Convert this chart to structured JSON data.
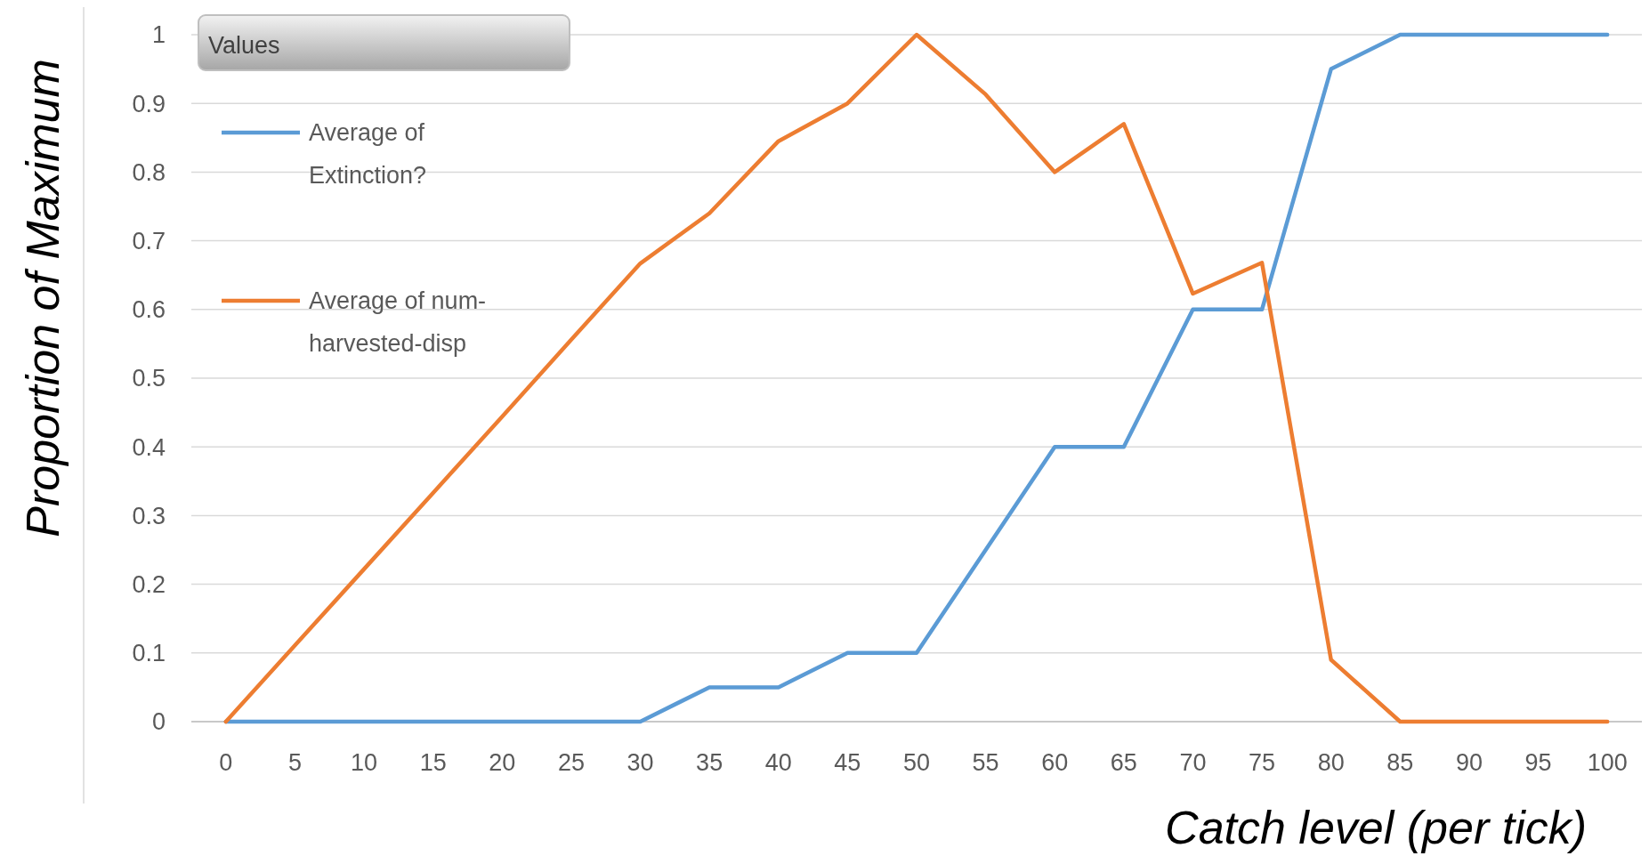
{
  "chart_data": {
    "type": "line",
    "xlabel": "Catch level (per tick)",
    "ylabel": "Proportion of Maximum",
    "legend_title": "Values",
    "categories": [
      "0",
      "5",
      "10",
      "15",
      "20",
      "25",
      "30",
      "35",
      "40",
      "45",
      "50",
      "55",
      "60",
      "65",
      "70",
      "75",
      "80",
      "85",
      "90",
      "95",
      "100"
    ],
    "series": [
      {
        "name": "Average of Extinction?",
        "color": "#5b9bd5",
        "values": [
          0,
          0,
          0,
          0,
          0,
          0,
          0,
          0.05,
          0.05,
          0.1,
          0.1,
          0.25,
          0.4,
          0.4,
          0.6,
          0.6,
          0.95,
          1,
          1,
          1,
          1
        ]
      },
      {
        "name": "Average of num-harvested-disp",
        "color": "#ed7d31",
        "values": [
          0,
          0.111,
          0.222,
          0.333,
          0.444,
          0.556,
          0.667,
          0.74,
          0.845,
          0.9,
          1,
          0.913,
          0.8,
          0.87,
          0.623,
          0.668,
          0.09,
          0,
          0,
          0,
          0
        ]
      }
    ],
    "ylim": [
      0,
      1
    ],
    "yticks": [
      0,
      {
        "value": 0.1,
        "label": "0.1"
      },
      {
        "value": 0.2,
        "label": "0.2"
      },
      {
        "value": 0.3,
        "label": "0.3"
      },
      {
        "value": 0.4,
        "label": "0.4"
      },
      {
        "value": 0.5,
        "label": "0.5"
      },
      {
        "value": 0.6,
        "label": "0.6"
      },
      {
        "value": 0.7,
        "label": "0.7"
      },
      {
        "value": 0.8,
        "label": "0.8"
      },
      {
        "value": 0.9,
        "label": "0.9"
      },
      1
    ],
    "grid": "y",
    "legend": "top left",
    "marker": "none",
    "line_style": "solid"
  }
}
